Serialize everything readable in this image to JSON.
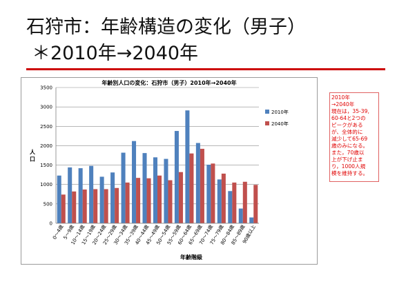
{
  "slide": {
    "title_line1": "石狩市：年齢構造の変化（男子）",
    "title_line2": "＊2010年→2040年",
    "accent_color": "#cc0000"
  },
  "note": {
    "lines": [
      "2010年",
      "→2040年",
      "現在は，35-39,",
      "60-64と2つの",
      "ピークがある",
      "が、全体的に",
      "減少して65-69",
      "歳のみになる。",
      "また，70歳以",
      "上が下げ止ま",
      "り，1000人規",
      "模を維持する。"
    ]
  },
  "chart_data": {
    "type": "bar",
    "title": "年齢別人口の変化：石狩市（男子）2010年→2040年",
    "xlabel": "年齢階級",
    "ylabel": "人口",
    "ylim": [
      0,
      3500
    ],
    "yticks": [
      0,
      500,
      1000,
      1500,
      2000,
      2500,
      3000,
      3500
    ],
    "grid": true,
    "legend_position": "right",
    "categories": [
      "0～4歳",
      "5～9歳",
      "10～14歳",
      "15～19歳",
      "20～24歳",
      "25～29歳",
      "30～34歳",
      "35～39歳",
      "40～44歳",
      "45～49歳",
      "50～54歳",
      "55～59歳",
      "60～64歳",
      "65～69歳",
      "70～74歳",
      "75～79歳",
      "80～84歳",
      "85～89歳",
      "90歳以上"
    ],
    "series": [
      {
        "name": "2010年",
        "color": "#4f81bd",
        "values": [
          1230,
          1440,
          1420,
          1480,
          1200,
          1310,
          1820,
          2120,
          1810,
          1700,
          1660,
          2380,
          2910,
          2070,
          1510,
          1130,
          830,
          380,
          150
        ]
      },
      {
        "name": "2040年",
        "color": "#c0504d",
        "values": [
          740,
          820,
          870,
          880,
          880,
          910,
          1050,
          1170,
          1160,
          1230,
          1110,
          1320,
          1800,
          1920,
          1540,
          1280,
          1050,
          1070,
          990
        ]
      }
    ]
  }
}
